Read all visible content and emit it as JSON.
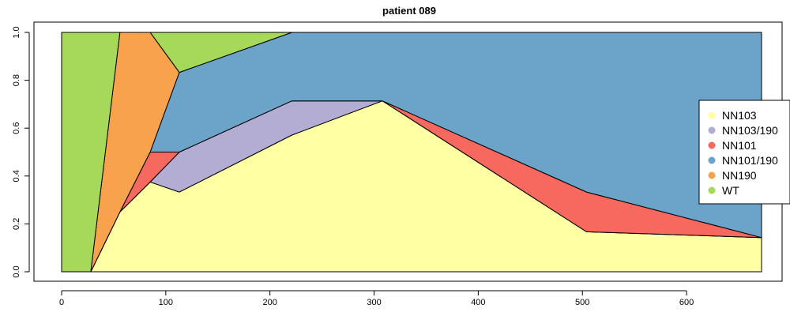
{
  "chart_data": {
    "type": "area",
    "title": "patient 089",
    "xlabel": "",
    "ylabel": "",
    "xlim": [
      0,
      672
    ],
    "ylim": [
      0,
      1
    ],
    "x_ticks": [
      0,
      100,
      200,
      300,
      400,
      500,
      600
    ],
    "y_ticks": [
      0.0,
      0.2,
      0.4,
      0.6,
      0.8,
      1.0
    ],
    "y_tick_labels": [
      "0.0",
      "0.2",
      "0.4",
      "0.6",
      "0.8",
      "1.0"
    ],
    "x": [
      0,
      28,
      56,
      85,
      113,
      221,
      308,
      504,
      672
    ],
    "series": [
      {
        "name": "NN103",
        "color": "#FFFFA3",
        "values": [
          0,
          0,
          0.25,
          0.375,
          0.333,
          0.571,
          0.714,
          0.167,
          0.143
        ]
      },
      {
        "name": "NN103/190",
        "color": "#B3ADD4",
        "values": [
          0,
          0,
          0,
          0,
          0.167,
          0.143,
          0,
          0,
          0
        ]
      },
      {
        "name": "NN101",
        "color": "#F7685E",
        "values": [
          0,
          0,
          0,
          0.125,
          0,
          0,
          0,
          0.166,
          0
        ]
      },
      {
        "name": "NN101/190",
        "color": "#6BA3C9",
        "values": [
          0,
          0,
          0,
          0,
          0.333,
          0.286,
          0.286,
          0.667,
          0.857
        ]
      },
      {
        "name": "NN190",
        "color": "#F9A24E",
        "values": [
          0,
          0,
          0.75,
          0.5,
          0,
          0,
          0,
          0,
          0
        ]
      },
      {
        "name": "WT",
        "color": "#A6D85A",
        "values": [
          1,
          1,
          0,
          0,
          0.167,
          0,
          0,
          0,
          0
        ]
      }
    ],
    "legend": {
      "position": "right",
      "entries": [
        "NN103",
        "NN103/190",
        "NN101",
        "NN101/190",
        "NN190",
        "WT"
      ]
    }
  }
}
